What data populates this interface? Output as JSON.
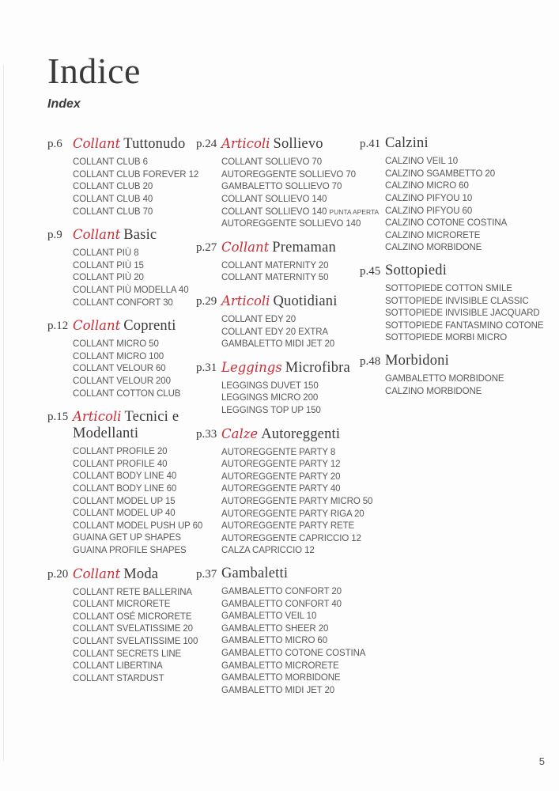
{
  "header": {
    "title": "Indice",
    "subtitle": "Index"
  },
  "footer": {
    "page_number": "5"
  },
  "colors": {
    "script_red": "#c92d35",
    "heading_gray": "#3a3a3a",
    "item_gray": "#57585a"
  },
  "columns": [
    {
      "sections": [
        {
          "page_ref": "p.6",
          "script": "Collant",
          "heading": "Tuttonudo",
          "items": [
            "COLLANT CLUB 6",
            "COLLANT CLUB FOREVER 12",
            "COLLANT CLUB 20",
            "COLLANT CLUB 40",
            "COLLANT CLUB 70"
          ]
        },
        {
          "page_ref": "p.9",
          "script": "Collant",
          "heading": "Basic",
          "items": [
            "COLLANT PIÙ 8",
            "COLLANT PIÙ 15",
            "COLLANT PIÙ 20",
            "COLLANT PIÙ MODELLA 40",
            "COLLANT CONFORT 30"
          ]
        },
        {
          "page_ref": "p.12",
          "script": "Collant",
          "heading": "Coprenti",
          "items": [
            "COLLANT MICRO 50",
            "COLLANT MICRO 100",
            "COLLANT VELOUR 60",
            "COLLANT VELOUR 200",
            "COLLANT COTTON CLUB"
          ]
        },
        {
          "page_ref": "p.15",
          "script": "Articoli",
          "heading": "Tecnici e Modellanti",
          "items": [
            "COLLANT PROFILE 20",
            "COLLANT PROFILE 40",
            "COLLANT BODY LINE 40",
            "COLLANT BODY LINE 60",
            "COLLANT MODEL UP 15",
            "COLLANT MODEL UP 40",
            "COLLANT MODEL PUSH UP 60",
            "GUAINA GET UP SHAPES",
            "GUAINA PROFILE SHAPES"
          ]
        },
        {
          "page_ref": "p.20",
          "script": "Collant",
          "heading": "Moda",
          "items": [
            "COLLANT RETE BALLERINA",
            "COLLANT MICRORETE",
            "COLLANT OSÉ MICRORETE",
            "COLLANT SVELATISSIME 20",
            "COLLANT SVELATISSIME 100",
            "COLLANT SECRETS LINE",
            "COLLANT LIBERTINA",
            "COLLANT STARDUST"
          ]
        }
      ]
    },
    {
      "sections": [
        {
          "page_ref": "p.24",
          "script": "Articoli",
          "heading": "Sollievo",
          "items": [
            "COLLANT SOLLIEVO 70",
            "AUTOREGGENTE SOLLIEVO 70",
            "GAMBALETTO SOLLIEVO 70",
            "COLLANT SOLLIEVO 140",
            {
              "text": "COLLANT SOLLIEVO 140 ",
              "suffix": "PUNTA APERTA"
            },
            "AUTOREGGENTE SOLLIEVO 140"
          ]
        },
        {
          "page_ref": "p.27",
          "script": "Collant",
          "heading": "Premaman",
          "items": [
            "COLLANT MATERNITY 20",
            "COLLANT MATERNITY 50"
          ]
        },
        {
          "page_ref": "p.29",
          "script": "Articoli",
          "heading": "Quotidiani",
          "items": [
            "COLLANT EDY 20",
            "COLLANT EDY 20 EXTRA",
            "GAMBALETTO MIDI JET 20"
          ]
        },
        {
          "page_ref": "p.31",
          "script": "Leggings",
          "heading": "Microfibra",
          "items": [
            "LEGGINGS DUVET 150",
            "LEGGINGS MICRO 200",
            "LEGGINGS TOP UP 150"
          ]
        },
        {
          "page_ref": "p.33",
          "script": "Calze",
          "heading": "Autoreggenti",
          "items": [
            "AUTOREGGENTE PARTY 8",
            "AUTOREGGENTE PARTY 12",
            "AUTOREGGENTE PARTY 20",
            "AUTOREGGENTE PARTY 40",
            "AUTOREGGENTE PARTY MICRO 50",
            "AUTOREGGENTE PARTY RIGA 20",
            "AUTOREGGENTE PARTY RETE",
            "AUTOREGGENTE CAPRICCIO 12",
            "CALZA CAPRICCIO 12"
          ]
        },
        {
          "page_ref": "p.37",
          "script": "",
          "heading": "Gambaletti",
          "items": [
            "GAMBALETTO CONFORT 20",
            "GAMBALETTO CONFORT 40",
            "GAMBALETTO VEIL 10",
            "GAMBALETTO SHEER 20",
            "GAMBALETTO MICRO 60",
            "GAMBALETTO COTONE COSTINA",
            "GAMBALETTO MICRORETE",
            "GAMBALETTO MORBIDONE",
            "GAMBALETTO MIDI JET 20"
          ]
        }
      ]
    },
    {
      "sections": [
        {
          "page_ref": "p.41",
          "script": "",
          "heading": "Calzini",
          "items": [
            "CALZINO VEIL 10",
            "CALZINO SGAMBETTO 20",
            "CALZINO MICRO 60",
            "CALZINO PIFYOU 10",
            "CALZINO PIFYOU 60",
            "CALZINO COTONE COSTINA",
            "CALZINO MICRORETE",
            "CALZINO MORBIDONE"
          ]
        },
        {
          "page_ref": "p.45",
          "script": "",
          "heading": "Sottopiedi",
          "items": [
            "SOTTOPIEDE COTTON SMILE",
            "SOTTOPIEDE INVISIBLE CLASSIC",
            "SOTTOPIEDE INVISIBLE JACQUARD",
            "SOTTOPIEDE FANTASMINO COTONE",
            "SOTTOPIEDE MORBI MICRO"
          ]
        },
        {
          "page_ref": "p.48",
          "script": "",
          "heading": "Morbidoni",
          "items": [
            "GAMBALETTO MORBIDONE",
            "CALZINO MORBIDONE"
          ]
        }
      ]
    }
  ]
}
